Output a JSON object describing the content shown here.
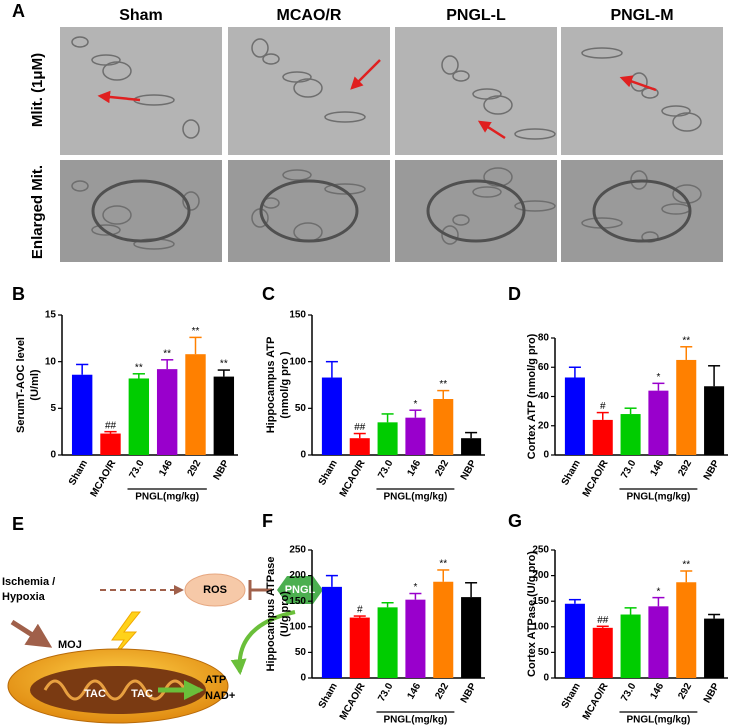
{
  "panel_a": {
    "label": "A",
    "columns": [
      "Sham",
      "MCAO/R",
      "PNGL-L",
      "PNGL-M"
    ],
    "rows": [
      "Mlit. (1μM)",
      "Enlarged Mit."
    ]
  },
  "panel_e": {
    "label": "E",
    "stimulus": [
      "Ischemia /",
      "Hypoxia"
    ],
    "ros": "ROS",
    "drug": "PNGL",
    "moj": "MOJ",
    "tac_1": "TAC",
    "tac_2": "TAC",
    "outputs": [
      "ATP",
      "NAD+"
    ]
  },
  "chart_data": [
    {
      "type": "bar",
      "panel": "B",
      "y_label": [
        "SerumT-AOC level",
        "(U/ml)"
      ],
      "categories": [
        "Sham",
        "MCAO/R",
        "73.0",
        "146",
        "292",
        "NBP"
      ],
      "group_label": "PNGL(mg/kg)",
      "values": [
        8.6,
        2.3,
        8.2,
        9.2,
        10.8,
        8.4
      ],
      "errors": [
        1.1,
        0.2,
        0.5,
        1.0,
        1.8,
        0.7
      ],
      "annotations": [
        null,
        "##",
        "**",
        "**",
        "**",
        "**"
      ],
      "colors": [
        "#0000ff",
        "#ff0000",
        "#00cc00",
        "#9900cc",
        "#ff8000",
        "#000000"
      ],
      "ylim": [
        0,
        15
      ],
      "yticks": [
        0,
        5,
        10,
        15
      ]
    },
    {
      "type": "bar",
      "panel": "C",
      "y_label": [
        "Hippocampus ATP",
        "(nmol/g pro )"
      ],
      "categories": [
        "Sham",
        "MCAO/R",
        "73.0",
        "146",
        "292",
        "NBP"
      ],
      "group_label": "PNGL(mg/kg)",
      "values": [
        83,
        18,
        35,
        40,
        60,
        18
      ],
      "errors": [
        17,
        5,
        9,
        8,
        9,
        6
      ],
      "annotations": [
        null,
        "##",
        null,
        "*",
        "**",
        null
      ],
      "colors": [
        "#0000ff",
        "#ff0000",
        "#00cc00",
        "#9900cc",
        "#ff8000",
        "#000000"
      ],
      "ylim": [
        0,
        150
      ],
      "yticks": [
        0,
        50,
        100,
        150
      ]
    },
    {
      "type": "bar",
      "panel": "D",
      "y_label": [
        "Cortex ATP (nmol/g pro)"
      ],
      "categories": [
        "Sham",
        "MCAO/R",
        "73.0",
        "146",
        "292",
        "NBP"
      ],
      "group_label": "PNGL(mg/kg)",
      "values": [
        53,
        24,
        28,
        44,
        65,
        47
      ],
      "errors": [
        7,
        5,
        4,
        5,
        9,
        14
      ],
      "annotations": [
        null,
        "#",
        null,
        "*",
        "**",
        null
      ],
      "colors": [
        "#0000ff",
        "#ff0000",
        "#00cc00",
        "#9900cc",
        "#ff8000",
        "#000000"
      ],
      "ylim": [
        0,
        80
      ],
      "yticks": [
        0,
        20,
        40,
        60,
        80
      ]
    },
    {
      "type": "bar",
      "panel": "F",
      "y_label": [
        "Hippocampus ATPase",
        "(U/g pro)"
      ],
      "categories": [
        "Sham",
        "MCAO/R",
        "73.0",
        "146",
        "292",
        "NBP"
      ],
      "group_label": "PNGL(mg/kg)",
      "values": [
        178,
        118,
        138,
        153,
        188,
        158
      ],
      "errors": [
        22,
        3,
        9,
        12,
        23,
        28
      ],
      "annotations": [
        null,
        "#",
        null,
        "*",
        "**",
        null
      ],
      "colors": [
        "#0000ff",
        "#ff0000",
        "#00cc00",
        "#9900cc",
        "#ff8000",
        "#000000"
      ],
      "ylim": [
        0,
        250
      ],
      "yticks": [
        0,
        50,
        100,
        150,
        200,
        250
      ]
    },
    {
      "type": "bar",
      "panel": "G",
      "y_label": [
        "Cortex ATPase (U/g pro)"
      ],
      "categories": [
        "Sham",
        "MCAO/R",
        "73.0",
        "146",
        "292",
        "NBP"
      ],
      "group_label": "PNGL(mg/kg)",
      "values": [
        145,
        98,
        124,
        140,
        187,
        116
      ],
      "errors": [
        8,
        3,
        13,
        17,
        22,
        8
      ],
      "annotations": [
        null,
        "##",
        null,
        "*",
        "**",
        null
      ],
      "colors": [
        "#0000ff",
        "#ff0000",
        "#00cc00",
        "#9900cc",
        "#ff8000",
        "#000000"
      ],
      "ylim": [
        0,
        250
      ],
      "yticks": [
        0,
        50,
        100,
        150,
        200,
        250
      ]
    }
  ]
}
